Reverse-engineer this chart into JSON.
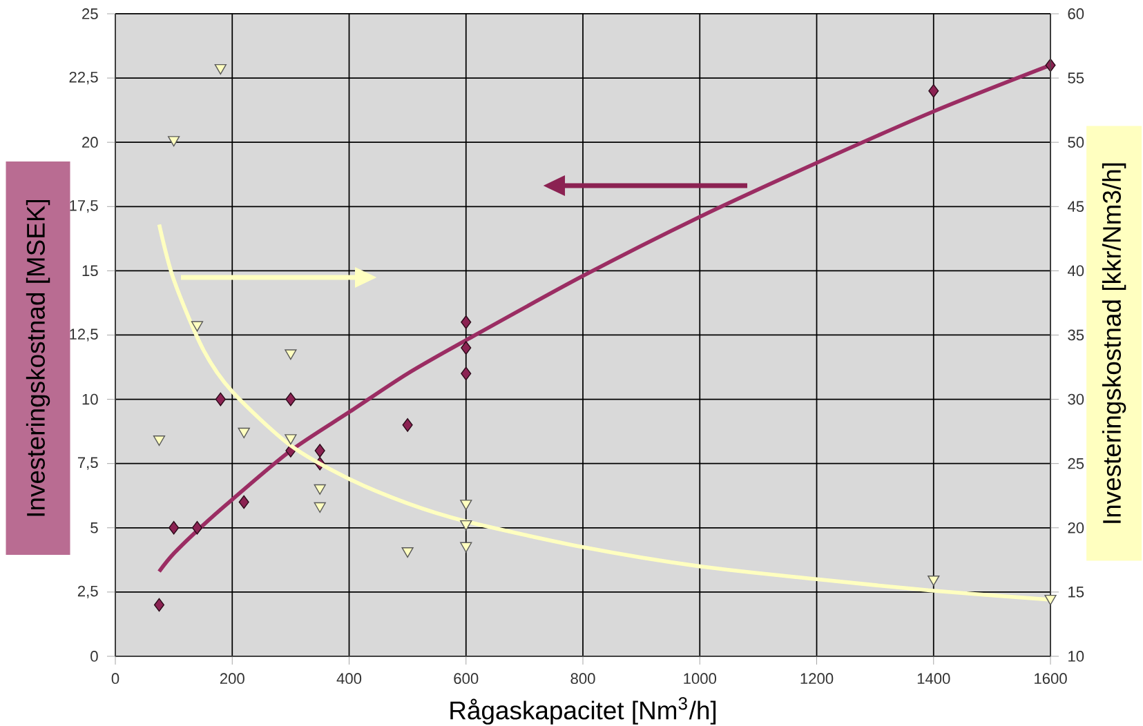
{
  "chart_data": {
    "type": "scatter",
    "xlabel": "Rågaskapacitet [Nm$^{3}$/h]",
    "ylabel": "Investeringskostnad [MSEK]",
    "y2label": "Investeringskostnad [kkr/Nm3/h]",
    "xlim": [
      0,
      1600
    ],
    "xticks": [
      0,
      200,
      400,
      600,
      800,
      1000,
      1200,
      1400,
      1600
    ],
    "ylim": [
      0,
      25
    ],
    "yticks": [
      0,
      {
        "value": 2.5,
        "label": "2,5"
      },
      5,
      {
        "value": 7.5,
        "label": "7,5"
      },
      10,
      {
        "value": 12.5,
        "label": "12,5"
      },
      15,
      {
        "value": 17.5,
        "label": "17,5"
      },
      20,
      {
        "value": 22.5,
        "label": "22,5"
      },
      25
    ],
    "y2lim": [
      10,
      60
    ],
    "y2ticks": [
      10,
      15,
      20,
      25,
      30,
      35,
      40,
      45,
      50,
      55,
      60
    ],
    "grid": true,
    "series": [
      {
        "type": "line",
        "color": "#9b2d63",
        "marker": "none",
        "x": [
          75,
          100,
          150,
          200,
          300,
          400,
          500,
          600,
          800,
          1000,
          1200,
          1400,
          1600
        ],
        "values": [
          3.3,
          4.0,
          5.1,
          6.1,
          8.0,
          9.5,
          11.0,
          12.3,
          14.8,
          17.1,
          19.2,
          21.2,
          23.0
        ]
      },
      {
        "type": "line",
        "axis": "y2",
        "color": "#ffffc0",
        "marker": "none",
        "x": [
          75,
          100,
          150,
          200,
          300,
          400,
          500,
          600,
          800,
          1000,
          1200,
          1400,
          1600
        ],
        "values": [
          43.6,
          39.3,
          33.9,
          30.6,
          26.4,
          23.8,
          21.9,
          20.5,
          18.5,
          17.0,
          16.0,
          15.1,
          14.4
        ]
      },
      {
        "color": "#8b2252",
        "marker": "diamond",
        "x": [
          75,
          100,
          140,
          180,
          220,
          300,
          300,
          350,
          350,
          500,
          600,
          600,
          600,
          1400,
          1600
        ],
        "values": [
          2,
          5,
          5,
          10,
          6,
          10,
          8,
          8,
          7.5,
          9,
          13,
          12,
          11,
          22,
          23
        ]
      },
      {
        "axis": "y2",
        "color": "#ffffc0",
        "marker": "triangle",
        "x": [
          75,
          100,
          140,
          180,
          220,
          300,
          300,
          350,
          350,
          500,
          600,
          600,
          600,
          1400,
          1600
        ],
        "values": [
          26.9,
          50.2,
          35.8,
          55.8,
          27.5,
          33.6,
          27.0,
          23.1,
          21.7,
          18.2,
          21.9,
          20.3,
          18.6,
          16.0,
          14.5
        ]
      }
    ]
  }
}
